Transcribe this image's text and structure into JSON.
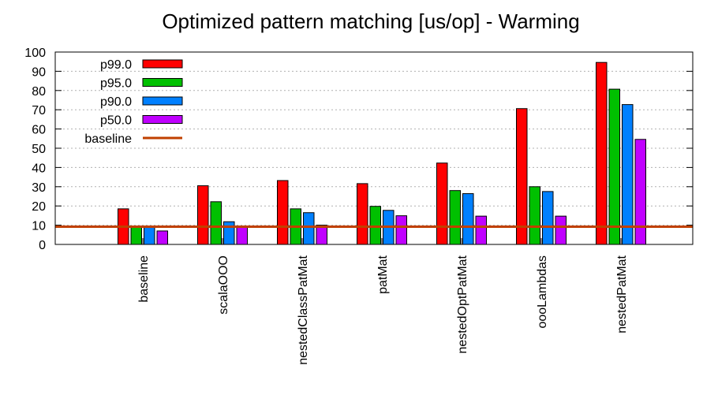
{
  "chart_data": {
    "type": "bar",
    "title": "Optimized pattern matching [us/op] - Warming",
    "xlabel": "",
    "ylabel": "",
    "ylim": [
      0,
      100
    ],
    "yticks": [
      0,
      10,
      20,
      30,
      40,
      50,
      60,
      70,
      80,
      90,
      100
    ],
    "grid": true,
    "legend_position": "top-left",
    "categories": [
      "baseline",
      "scalaOOO",
      "nestedClassPatMat",
      "patMat",
      "nestedOptPatMat",
      "oooLambdas",
      "nestedPatMat"
    ],
    "series": [
      {
        "name": "p99.0",
        "color": "#ff0000",
        "values": [
          18.5,
          30.5,
          33.2,
          31.6,
          42.3,
          70.6,
          94.6
        ]
      },
      {
        "name": "p95.0",
        "color": "#00c000",
        "values": [
          9.5,
          22.2,
          18.5,
          19.8,
          28.0,
          30.0,
          80.7
        ]
      },
      {
        "name": "p90.0",
        "color": "#0080ff",
        "values": [
          8.8,
          11.8,
          16.5,
          17.7,
          26.4,
          27.5,
          72.7
        ]
      },
      {
        "name": "p50.0",
        "color": "#c000ff",
        "values": [
          7.0,
          9.2,
          10.0,
          14.9,
          14.7,
          14.7,
          54.6
        ]
      }
    ],
    "reference_line": {
      "name": "baseline",
      "value": 9.2,
      "color": "#c04000"
    }
  }
}
